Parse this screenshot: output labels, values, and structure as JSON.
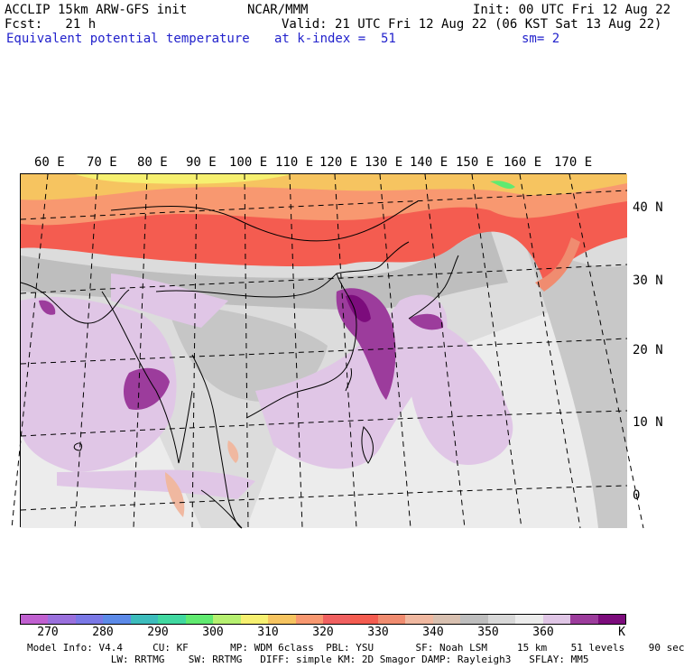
{
  "header": {
    "line1_left": "ACCLIP 15km ARW-GFS init",
    "line1_mid": "NCAR/MMM",
    "line1_right": "Init: 00 UTC Fri 12 Aug 22",
    "line2_left": "Fcst:   21 h",
    "line2_right": "Valid: 21 UTC Fri 12 Aug 22 (06 KST Sat 13 Aug 22)",
    "line3_left": "Equivalent potential temperature",
    "line3_mid": "at k-index =  51",
    "line3_right": "sm= 2"
  },
  "longitude_labels": [
    "60 E",
    "70 E",
    "80 E",
    "90 E",
    "100 E",
    "110 E",
    "120 E",
    "130 E",
    "140 E",
    "150 E",
    "160 E",
    "170 E"
  ],
  "latitude_labels": [
    "40 N",
    "30 N",
    "20 N",
    "10 N",
    "0"
  ],
  "colorbar": {
    "unit": "K",
    "tick_labels": [
      "270",
      "280",
      "290",
      "300",
      "310",
      "320",
      "330",
      "340",
      "350",
      "360"
    ],
    "colors": [
      "#c060d0",
      "#9a70dd",
      "#7a78e6",
      "#5c8ae8",
      "#3cbcbc",
      "#40d8a0",
      "#60ea70",
      "#b6f070",
      "#f6f070",
      "#f6c460",
      "#f89870",
      "#f06060",
      "#f45c50",
      "#f08c70",
      "#f0b8a0",
      "#d8c0b0",
      "#bebebe",
      "#d8d8d8",
      "#ececec",
      "#e0c6e6",
      "#9c3c9c",
      "#7c0c7c"
    ]
  },
  "footer": {
    "line1": "Model Info: V4.4     CU: KF       MP: WDM 6class  PBL: YSU       SF: Noah LSM     15 km    51 levels    90 sec",
    "line2": "              LW: RRTMG    SW: RRTMG   DIFF: simple KM: 2D Smagor DAMP: Rayleigh3   SFLAY: MM5"
  }
}
